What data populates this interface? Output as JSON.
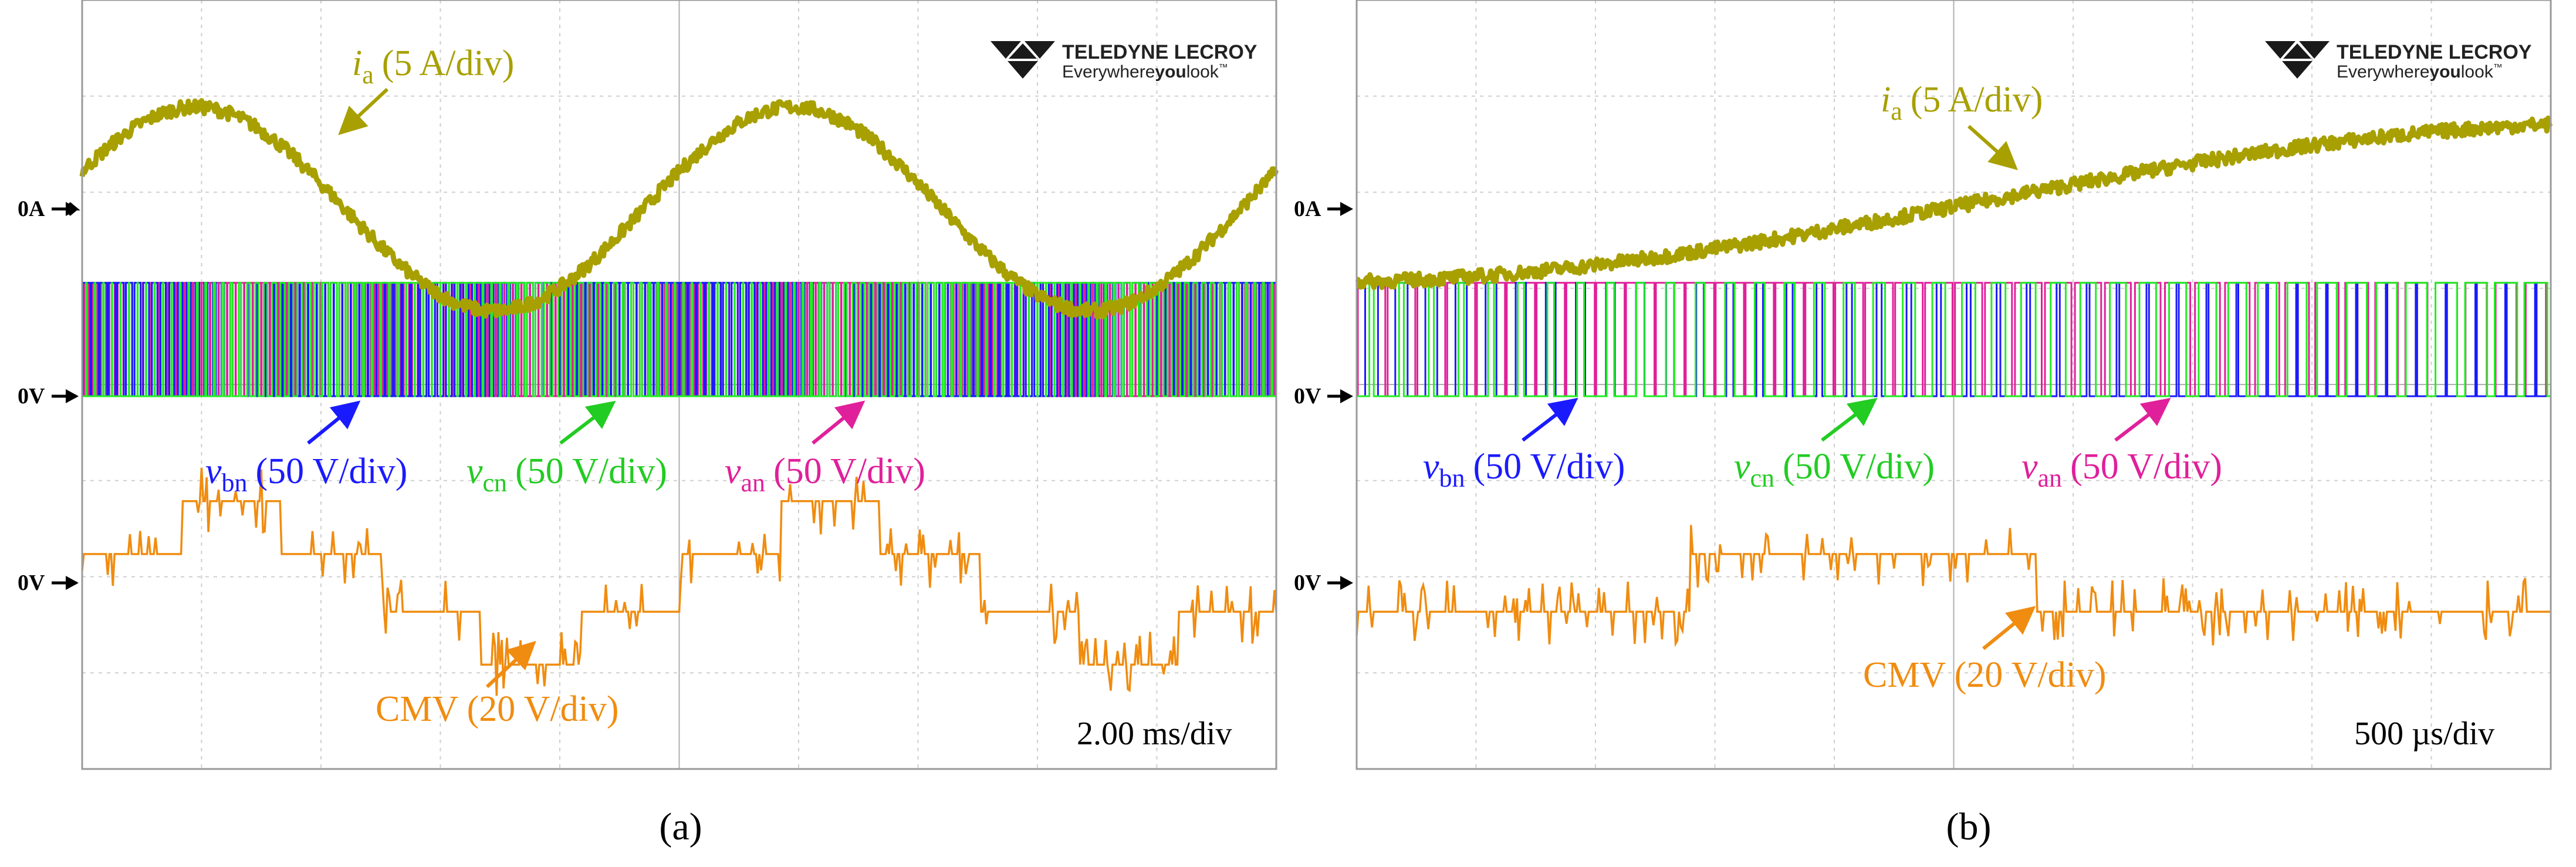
{
  "brand": {
    "name": "TELEDYNE LECROY",
    "tagline_a": "Everywhere",
    "tagline_b": "you",
    "tagline_c": "look",
    "tm": "™"
  },
  "colors": {
    "ia": "#a8a000",
    "van": "#e0209a",
    "vbn": "#1a1aff",
    "vcn": "#22ee22",
    "cmv": "#f08c10",
    "grid": "#cfcfcf",
    "frame": "#9a9a9a"
  },
  "labels": {
    "ia_name": "i",
    "ia_sub": "a",
    "ia_scale": "(5 A/div)",
    "vbn_name": "v",
    "vbn_sub": "bn",
    "vbn_scale": "(50 V/div)",
    "vcn_name": "v",
    "vcn_sub": "cn",
    "vcn_scale": "(50 V/div)",
    "van_name": "v",
    "van_sub": "an",
    "van_scale": "(50 V/div)",
    "cmv": "CMV (20 V/div)"
  },
  "markers": {
    "zero_current": "0A",
    "zero_voltage": "0V",
    "zero_cmv": "0V"
  },
  "chart_data": [
    {
      "type": "line",
      "panel": "a",
      "caption": "(a)",
      "timebase": "2.00 ms/div",
      "x_divisions": 10,
      "y_divisions": 8,
      "x_unit": "ms",
      "x_range": [
        0,
        20
      ],
      "series": [
        {
          "name": "ia",
          "unit": "A",
          "scale_per_div": 5,
          "waveform": "sine",
          "amplitude_A": 5.3,
          "frequency_Hz": 100,
          "period_ms": 10
        },
        {
          "name": "van",
          "unit": "V",
          "scale_per_div": 50,
          "waveform": "pwm",
          "levels_V": [
            0,
            59
          ]
        },
        {
          "name": "vbn",
          "unit": "V",
          "scale_per_div": 50,
          "waveform": "pwm",
          "levels_V": [
            0,
            59
          ]
        },
        {
          "name": "vcn",
          "unit": "V",
          "scale_per_div": 50,
          "waveform": "pwm",
          "levels_V": [
            0,
            59
          ]
        },
        {
          "name": "CMV",
          "unit": "V",
          "scale_per_div": 20,
          "waveform": "stepped",
          "levels_V": [
            17,
            6,
            -6,
            -17
          ],
          "step_ms": 1.67
        }
      ]
    },
    {
      "type": "line",
      "panel": "b",
      "caption": "(b)",
      "timebase": "500 µs/div",
      "x_divisions": 10,
      "y_divisions": 8,
      "x_unit": "µs",
      "x_range": [
        0,
        5000
      ],
      "series": [
        {
          "name": "ia",
          "unit": "A",
          "scale_per_div": 5,
          "waveform": "ramp",
          "start_A": -3.8,
          "end_A": 4.5
        },
        {
          "name": "van",
          "unit": "V",
          "scale_per_div": 50,
          "waveform": "pwm",
          "levels_V": [
            0,
            59
          ]
        },
        {
          "name": "vbn",
          "unit": "V",
          "scale_per_div": 50,
          "waveform": "pwm",
          "levels_V": [
            0,
            59
          ]
        },
        {
          "name": "vcn",
          "unit": "V",
          "scale_per_div": 50,
          "waveform": "pwm",
          "levels_V": [
            0,
            59
          ]
        },
        {
          "name": "CMV",
          "unit": "V",
          "scale_per_div": 20,
          "waveform": "stepped",
          "levels_V": [
            -6,
            6,
            -6
          ],
          "step_us": [
            1400,
            2850
          ]
        }
      ]
    }
  ]
}
